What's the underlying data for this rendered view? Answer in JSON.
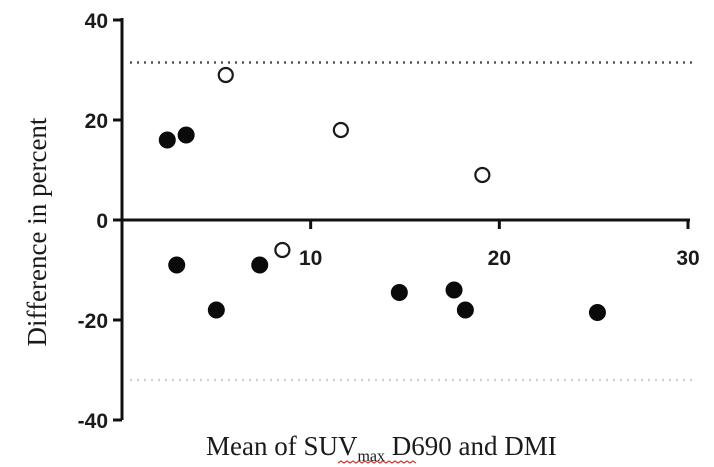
{
  "chart_data": {
    "type": "scatter",
    "xlabel": {
      "prefix": "Mean of ",
      "sub_base": "SUV",
      "sub_text": "max",
      "suffix": " D690 and DMI"
    },
    "ylabel": "Difference in percent",
    "xlim": [
      0,
      30
    ],
    "ylim": [
      -40,
      40
    ],
    "x_ticks": [
      10,
      20,
      30
    ],
    "y_ticks": [
      40,
      20,
      0,
      -20,
      -40
    ],
    "grid": false,
    "reference_lines": [
      {
        "y": 31.5,
        "style": "dotted",
        "color": "#555555"
      },
      {
        "y": -32,
        "style": "dotted",
        "color": "#d2d2d2"
      }
    ],
    "series": [
      {
        "marker": "filled-circle",
        "color": "#0a0a0a",
        "points": [
          {
            "x": 2.4,
            "y": 16
          },
          {
            "x": 3.4,
            "y": 17
          },
          {
            "x": 2.9,
            "y": -9
          },
          {
            "x": 5.0,
            "y": -18
          },
          {
            "x": 7.3,
            "y": -9
          },
          {
            "x": 14.7,
            "y": -14.5
          },
          {
            "x": 17.6,
            "y": -14
          },
          {
            "x": 18.2,
            "y": -18
          },
          {
            "x": 25.2,
            "y": -18.5
          }
        ]
      },
      {
        "marker": "open-circle",
        "color": "#1a1a1a",
        "points": [
          {
            "x": 5.5,
            "y": 29
          },
          {
            "x": 11.6,
            "y": 18
          },
          {
            "x": 19.1,
            "y": 9
          },
          {
            "x": 8.5,
            "y": -6
          }
        ]
      }
    ]
  }
}
